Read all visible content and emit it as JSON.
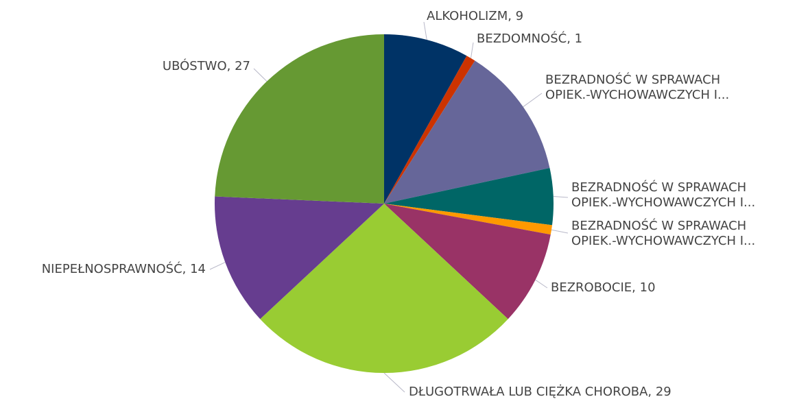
{
  "chart_data": {
    "type": "pie",
    "categories": [
      "ALKOHOLIZM, 9",
      "BEZDOMNOŚĆ, 1",
      [
        "BEZRADNOŚĆ W SPRAWACH",
        "OPIEK.-WYCHOWAWCZYCH I..."
      ],
      [
        "BEZRADNOŚĆ W SPRAWACH",
        "OPIEK.-WYCHOWAWCZYCH I..."
      ],
      [
        "BEZRADNOŚĆ W SPRAWACH",
        "OPIEK.-WYCHOWAWCZYCH I..."
      ],
      "BEZROBOCIE, 10",
      "DŁUGOTRWAŁA LUB CIĘŻKA CHOROBA, 29",
      "NIEPEŁNOSPRAWNOŚĆ, 14",
      "UBÓSTWO, 27"
    ],
    "values": [
      9,
      1,
      14,
      6,
      1,
      10,
      29,
      14,
      27
    ],
    "colors": [
      "#003366",
      "#cc3300",
      "#666699",
      "#006666",
      "#ff9900",
      "#993366",
      "#99cc33",
      "#663d8f",
      "#669933"
    ]
  }
}
